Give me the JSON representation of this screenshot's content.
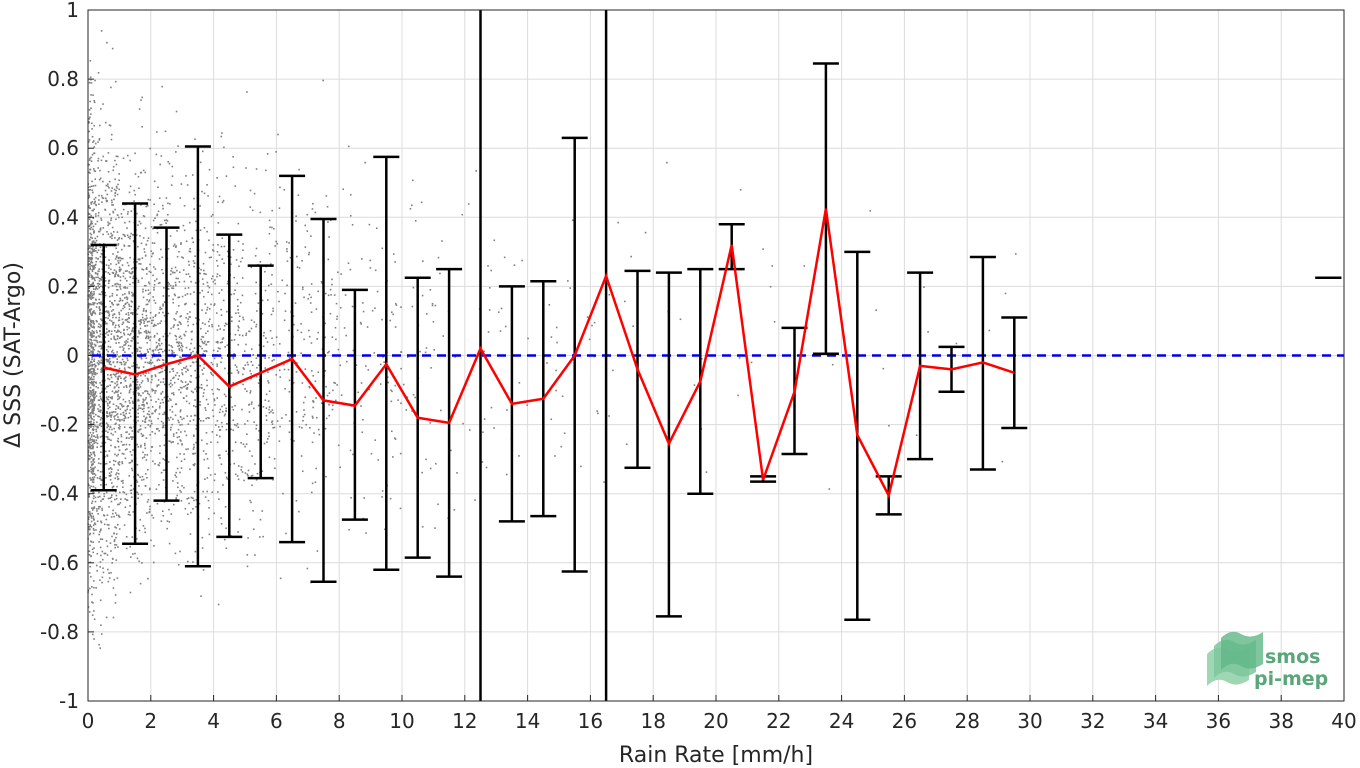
{
  "chart_data": {
    "type": "line",
    "title": "",
    "xlabel": "Rain Rate [mm/h]",
    "ylabel": "Δ SSS (SAT-Argo)",
    "xlim": [
      0,
      40
    ],
    "ylim": [
      -1,
      1
    ],
    "xticks": [
      0,
      2,
      4,
      6,
      8,
      10,
      12,
      14,
      16,
      18,
      20,
      22,
      24,
      26,
      28,
      30,
      32,
      34,
      36,
      38,
      40
    ],
    "yticks": [
      -1,
      -0.8,
      -0.6,
      -0.4,
      -0.2,
      0,
      0.2,
      0.4,
      0.6,
      0.8,
      1
    ],
    "ytick_labels": [
      "-1",
      "-0.8",
      "-0.6",
      "-0.4",
      "-0.2",
      "0",
      "0.2",
      "0.4",
      "0.6",
      "0.8",
      "1"
    ],
    "grid": true,
    "colors": {
      "mean_line": "#ff0000",
      "errorbar": "#000000",
      "zero_line": "#0000e6",
      "scatter": "#808080"
    },
    "zero_line_y": 0,
    "series": [
      {
        "kind": "mean-with-errorbars",
        "x": [
          0.5,
          1.5,
          2.5,
          3.5,
          4.5,
          5.5,
          6.5,
          7.5,
          8.5,
          9.5,
          10.5,
          11.5,
          12.5,
          13.5,
          14.5,
          15.5,
          16.5,
          17.5,
          18.5,
          19.5,
          20.5,
          21.5,
          22.5,
          23.5,
          24.5,
          25.5,
          26.5,
          27.5,
          28.5,
          29.5,
          39.5
        ],
        "mean": [
          -0.035,
          -0.055,
          -0.025,
          0.0,
          -0.09,
          -0.05,
          -0.01,
          -0.13,
          -0.145,
          -0.025,
          -0.18,
          -0.195,
          0.02,
          -0.14,
          -0.125,
          0.0,
          0.23,
          -0.04,
          -0.255,
          -0.075,
          0.32,
          -0.36,
          -0.105,
          0.425,
          -0.23,
          -0.405,
          -0.03,
          -0.04,
          -0.02,
          -0.05,
          0.225
        ],
        "upper": [
          0.32,
          0.44,
          0.37,
          0.605,
          0.35,
          0.26,
          0.52,
          0.395,
          0.19,
          0.575,
          0.225,
          0.25,
          1.05,
          0.2,
          0.215,
          0.63,
          1.05,
          0.245,
          0.24,
          0.25,
          0.38,
          -0.35,
          0.08,
          0.845,
          0.3,
          -0.35,
          0.24,
          0.025,
          0.285,
          0.11,
          0.225
        ],
        "lower": [
          -0.39,
          -0.545,
          -0.42,
          -0.61,
          -0.525,
          -0.355,
          -0.54,
          -0.655,
          -0.475,
          -0.62,
          -0.585,
          -0.64,
          -1.05,
          -0.48,
          -0.465,
          -0.625,
          -1.05,
          -0.325,
          -0.755,
          -0.4,
          0.25,
          -0.365,
          -0.285,
          0.005,
          -0.765,
          -0.46,
          -0.3,
          -0.105,
          -0.33,
          -0.21,
          0.225
        ]
      }
    ],
    "scatter_density": [
      {
        "x_range": [
          0,
          0.2
        ],
        "count": 700
      },
      {
        "x_range": [
          0.2,
          1
        ],
        "count": 900
      },
      {
        "x_range": [
          1,
          2
        ],
        "count": 700
      },
      {
        "x_range": [
          2,
          3
        ],
        "count": 450
      },
      {
        "x_range": [
          3,
          4
        ],
        "count": 320
      },
      {
        "x_range": [
          4,
          5
        ],
        "count": 230
      },
      {
        "x_range": [
          5,
          6
        ],
        "count": 170
      },
      {
        "x_range": [
          6,
          8
        ],
        "count": 190
      },
      {
        "x_range": [
          8,
          10
        ],
        "count": 100
      },
      {
        "x_range": [
          10,
          13
        ],
        "count": 70
      },
      {
        "x_range": [
          13,
          17
        ],
        "count": 45
      },
      {
        "x_range": [
          17,
          24
        ],
        "count": 25
      },
      {
        "x_range": [
          24,
          30
        ],
        "count": 12
      }
    ]
  },
  "logo": {
    "line1": "smos",
    "line2": "pi-mep"
  }
}
